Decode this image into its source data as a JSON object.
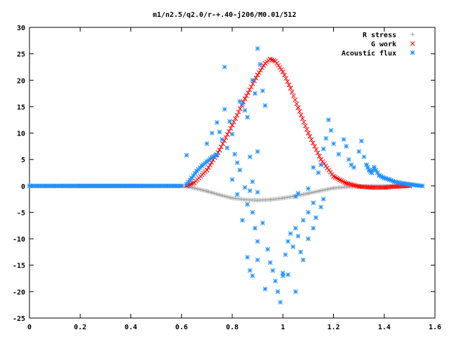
{
  "chart_data": {
    "type": "scatter",
    "title": "m1/n2.5/q2.0/r-+.40-j206/M0.01/512",
    "xlabel": "",
    "ylabel": "",
    "xlim": [
      0,
      1.6
    ],
    "ylim": [
      -25,
      30
    ],
    "x_ticks": [
      "0",
      "0.2",
      "0.4",
      "0.6",
      "0.8",
      "1",
      "1.2",
      "1.4",
      "1.6"
    ],
    "y_ticks": [
      "30",
      "25",
      "20",
      "15",
      "10",
      "5",
      "0",
      "-5",
      "-10",
      "-15",
      "-20",
      "-25"
    ],
    "grid": false,
    "legend_position": "top-right",
    "series": [
      {
        "name": "R stress",
        "marker": "+",
        "color": "#a0a0a0",
        "points": [
          [
            0.0,
            0
          ],
          [
            0.6,
            0
          ],
          [
            0.62,
            -0.1
          ],
          [
            0.65,
            -0.4
          ],
          [
            0.7,
            -1.0
          ],
          [
            0.75,
            -1.7
          ],
          [
            0.8,
            -2.3
          ],
          [
            0.85,
            -2.6
          ],
          [
            0.9,
            -2.7
          ],
          [
            0.95,
            -2.6
          ],
          [
            1.0,
            -2.3
          ],
          [
            1.05,
            -1.9
          ],
          [
            1.1,
            -1.4
          ],
          [
            1.15,
            -0.9
          ],
          [
            1.2,
            -0.4
          ],
          [
            1.25,
            -0.2
          ],
          [
            1.3,
            -0.1
          ],
          [
            1.35,
            0
          ],
          [
            1.45,
            0
          ]
        ]
      },
      {
        "name": "G work",
        "marker": "x",
        "color": "#ff0000",
        "points": [
          [
            0.62,
            0
          ],
          [
            0.65,
            0.6
          ],
          [
            0.7,
            3.0
          ],
          [
            0.75,
            6.8
          ],
          [
            0.8,
            11.5
          ],
          [
            0.85,
            16.5
          ],
          [
            0.9,
            21.0
          ],
          [
            0.93,
            23.2
          ],
          [
            0.95,
            24.0
          ],
          [
            0.97,
            23.6
          ],
          [
            1.0,
            21.6
          ],
          [
            1.03,
            18.5
          ],
          [
            1.06,
            14.8
          ],
          [
            1.1,
            10.0
          ],
          [
            1.15,
            5.0
          ],
          [
            1.2,
            1.8
          ],
          [
            1.25,
            0.5
          ],
          [
            1.3,
            -0.1
          ],
          [
            1.35,
            -0.3
          ],
          [
            1.4,
            -0.3
          ],
          [
            1.45,
            -0.1
          ],
          [
            1.5,
            0
          ]
        ]
      },
      {
        "name": "Acoustic flux",
        "marker": "*",
        "color": "#1e90ff",
        "points": [
          [
            0.0,
            0
          ],
          [
            0.2,
            0
          ],
          [
            0.4,
            0
          ],
          [
            0.6,
            0
          ],
          [
            0.62,
            0.3
          ],
          [
            0.64,
            1.5
          ],
          [
            0.66,
            2.8
          ],
          [
            0.68,
            3.8
          ],
          [
            0.7,
            4.6
          ],
          [
            0.72,
            5.4
          ],
          [
            0.74,
            5.9
          ],
          [
            0.62,
            5.8
          ],
          [
            0.7,
            8.0
          ],
          [
            0.72,
            10.0
          ],
          [
            0.74,
            12.0
          ],
          [
            0.75,
            10.2
          ],
          [
            0.76,
            8.8
          ],
          [
            0.78,
            7.2
          ],
          [
            0.77,
            22.5
          ],
          [
            0.77,
            14.5
          ],
          [
            0.79,
            12.2
          ],
          [
            0.8,
            9.8
          ],
          [
            0.81,
            6.0
          ],
          [
            0.82,
            4.4
          ],
          [
            0.83,
            3.0
          ],
          [
            0.8,
            1.2
          ],
          [
            0.85,
            -0.3
          ],
          [
            0.82,
            -1.6
          ],
          [
            0.84,
            -6.5
          ],
          [
            0.86,
            -3.5
          ],
          [
            0.87,
            -0.9
          ],
          [
            0.88,
            0.8
          ],
          [
            0.9,
            -1.2
          ],
          [
            0.83,
            16.0
          ],
          [
            0.84,
            15.5
          ],
          [
            0.85,
            14.3
          ],
          [
            0.86,
            13.0
          ],
          [
            0.88,
            20.0
          ],
          [
            0.89,
            17.5
          ],
          [
            0.9,
            26.0
          ],
          [
            0.91,
            23.0
          ],
          [
            0.92,
            18.0
          ],
          [
            0.93,
            15.2
          ],
          [
            0.87,
            5.5
          ],
          [
            0.9,
            6.5
          ],
          [
            0.88,
            -5.0
          ],
          [
            0.89,
            -8.0
          ],
          [
            0.9,
            -10.5
          ],
          [
            0.92,
            -7.0
          ],
          [
            0.94,
            -12.0
          ],
          [
            0.95,
            -14.5
          ],
          [
            0.96,
            -16.0
          ],
          [
            0.97,
            -18.0
          ],
          [
            0.98,
            -20.0
          ],
          [
            0.99,
            -22.0
          ],
          [
            1.0,
            -16.5
          ],
          [
            1.01,
            -13.0
          ],
          [
            1.02,
            -10.5
          ],
          [
            1.03,
            -9.0
          ],
          [
            1.04,
            -11.5
          ],
          [
            1.05,
            -8.0
          ],
          [
            1.06,
            -9.5
          ],
          [
            1.07,
            -12.5
          ],
          [
            1.08,
            -14.0
          ],
          [
            1.1,
            -10.0
          ],
          [
            1.12,
            -8.0
          ],
          [
            1.13,
            -6.0
          ],
          [
            1.15,
            -4.0
          ],
          [
            1.16,
            -2.5
          ],
          [
            0.86,
            -13.5
          ],
          [
            0.87,
            -16.0
          ],
          [
            0.88,
            -17.0
          ],
          [
            0.9,
            -14.0
          ],
          [
            0.93,
            -19.5
          ],
          [
            1.0,
            -17.0
          ],
          [
            1.02,
            -16.8
          ],
          [
            1.05,
            -20.0
          ],
          [
            1.08,
            -6.5
          ],
          [
            1.1,
            -5.0
          ],
          [
            1.12,
            -3.2
          ],
          [
            1.05,
            -2.0
          ],
          [
            1.06,
            -1.4
          ],
          [
            1.1,
            -0.5
          ],
          [
            1.14,
            2.5
          ],
          [
            1.15,
            4.0
          ],
          [
            1.12,
            3.5
          ],
          [
            1.16,
            7.0
          ],
          [
            1.17,
            9.0
          ],
          [
            1.18,
            12.5
          ],
          [
            1.19,
            10.5
          ],
          [
            1.2,
            8.0
          ],
          [
            1.22,
            6.0
          ],
          [
            1.24,
            8.8
          ],
          [
            1.25,
            7.5
          ],
          [
            1.26,
            5.0
          ],
          [
            1.27,
            4.0
          ],
          [
            1.28,
            3.5
          ],
          [
            1.3,
            6.5
          ],
          [
            1.31,
            8.5
          ],
          [
            1.32,
            5.5
          ],
          [
            1.33,
            4.0
          ],
          [
            1.34,
            3.0
          ],
          [
            1.35,
            2.5
          ],
          [
            1.36,
            3.5
          ],
          [
            1.38,
            2.0
          ],
          [
            1.4,
            1.5
          ],
          [
            1.42,
            1.2
          ],
          [
            1.44,
            0.8
          ],
          [
            1.47,
            0.5
          ],
          [
            1.5,
            0.3
          ],
          [
            1.53,
            0.1
          ],
          [
            1.55,
            0
          ]
        ]
      }
    ]
  }
}
